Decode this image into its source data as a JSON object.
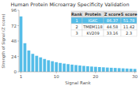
{
  "chart_data": {
    "type": "bar",
    "title": "Human Protein Microarray Specificity Validation",
    "xlabel": "Signal Rank",
    "ylabel": "Strength of Signal (Z score)",
    "x": [
      1,
      2,
      3,
      4,
      5,
      6,
      7,
      8,
      9,
      10,
      11,
      12,
      13,
      14,
      15,
      16,
      17,
      18,
      19,
      20,
      21,
      22,
      23,
      24,
      25,
      26,
      27,
      28,
      29,
      30
    ],
    "values": [
      86.37,
      44.58,
      33.16,
      28.0,
      25.0,
      22.5,
      20.0,
      18.0,
      16.5,
      15.0,
      13.8,
      12.8,
      12.0,
      11.2,
      10.5,
      9.8,
      9.2,
      8.7,
      8.2,
      7.8,
      7.4,
      7.0,
      6.6,
      6.3,
      6.0,
      5.7,
      5.4,
      5.1,
      4.8,
      4.5
    ],
    "color": "#55bde8",
    "xlim": [
      0.5,
      30.5
    ],
    "xticks": [
      1,
      10,
      20,
      30
    ],
    "ylim": [
      0,
      96
    ],
    "yticks": [
      0,
      24,
      48,
      72,
      96
    ],
    "table": {
      "columns": [
        "Rank",
        "Protein",
        "Z score",
        "S score"
      ],
      "rows": [
        [
          "1",
          "IGKC",
          "86.37",
          "51.78"
        ],
        [
          "2",
          "TMEM118",
          "44.58",
          "11.42"
        ],
        [
          "3",
          "KV209",
          "33.16",
          "2.3"
        ]
      ]
    }
  }
}
